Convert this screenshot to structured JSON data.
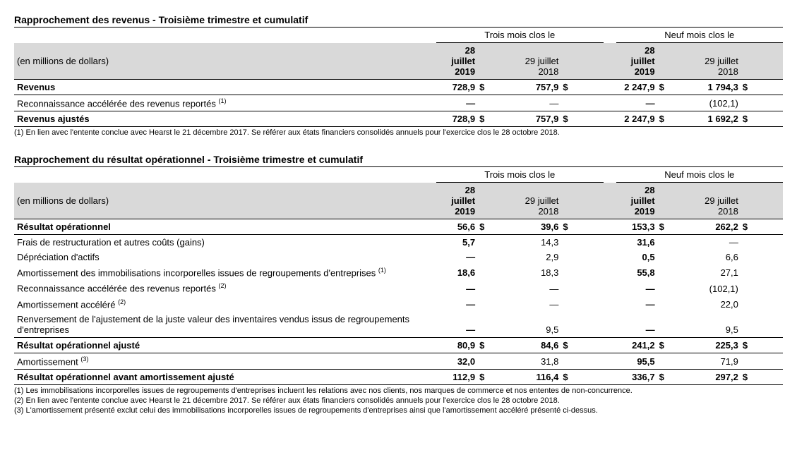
{
  "table1": {
    "title": "Rapprochement des revenus - Troisième trimestre et cumulatif",
    "units_label": "(en millions de dollars)",
    "period_headers": [
      "Trois mois clos le",
      "Neuf mois clos le"
    ],
    "col_headers": [
      "28 juillet 2019",
      "29 juillet 2018",
      "28 juillet 2019",
      "29 juillet 2018"
    ],
    "col_bold": [
      true,
      false,
      true,
      false
    ],
    "currency": "$",
    "rows": [
      {
        "label": "Revenus",
        "values": [
          "728,9",
          "757,9",
          "2 247,9",
          "1 794,3"
        ],
        "bold": true,
        "show_currency": true,
        "border_bottom": "thin"
      },
      {
        "label": "Reconnaissance accélérée des revenus reportés",
        "footnote_ref": "(1)",
        "values": [
          "—",
          "—",
          "—",
          "(102,1)"
        ],
        "bold": false,
        "show_currency": false
      },
      {
        "label": "Revenus ajustés",
        "values": [
          "728,9",
          "757,9",
          "2 247,9",
          "1 692,2"
        ],
        "bold": true,
        "show_currency": true,
        "border_top": "thin",
        "border_bottom": "thick"
      }
    ],
    "footnotes": [
      "(1) En lien avec l'entente conclue avec Hearst le 21 décembre 2017. Se référer aux états financiers consolidés annuels pour l'exercice clos le 28 octobre 2018."
    ]
  },
  "table2": {
    "title": "Rapprochement du résultat opérationnel - Troisième trimestre et cumulatif",
    "units_label": "(en millions de dollars)",
    "period_headers": [
      "Trois mois clos le",
      "Neuf mois clos le"
    ],
    "col_headers": [
      "28 juillet 2019",
      "29 juillet 2018",
      "28 juillet 2019",
      "29 juillet 2018"
    ],
    "col_bold": [
      true,
      false,
      true,
      false
    ],
    "currency": "$",
    "rows": [
      {
        "label": "Résultat opérationnel",
        "values": [
          "56,6",
          "39,6",
          "153,3",
          "262,2"
        ],
        "bold": true,
        "show_currency": true,
        "border_bottom": "thin"
      },
      {
        "label": "Frais de restructuration et autres coûts (gains)",
        "values": [
          "5,7",
          "14,3",
          "31,6",
          "—"
        ],
        "bold": false,
        "show_currency": false
      },
      {
        "label": "Dépréciation d'actifs",
        "values": [
          "—",
          "2,9",
          "0,5",
          "6,6"
        ],
        "bold": false,
        "show_currency": false
      },
      {
        "label": "Amortissement des immobilisations incorporelles issues de regroupements d'entreprises",
        "footnote_ref": "(1)",
        "values": [
          "18,6",
          "18,3",
          "55,8",
          "27,1"
        ],
        "bold": false,
        "show_currency": false
      },
      {
        "label": "Reconnaissance accélérée des revenus reportés",
        "footnote_ref": "(2)",
        "values": [
          "—",
          "—",
          "—",
          "(102,1)"
        ],
        "bold": false,
        "show_currency": false
      },
      {
        "label": "Amortissement accéléré",
        "footnote_ref": "(2)",
        "values": [
          "—",
          "—",
          "—",
          "22,0"
        ],
        "bold": false,
        "show_currency": false
      },
      {
        "label": "Renversement de l'ajustement de la juste valeur des inventaires vendus issus de regroupements d'entreprises",
        "values": [
          "—",
          "9,5",
          "—",
          "9,5"
        ],
        "bold": false,
        "show_currency": false
      },
      {
        "label": "Résultat opérationnel ajusté",
        "values": [
          "80,9",
          "84,6",
          "241,2",
          "225,3"
        ],
        "bold": true,
        "show_currency": true,
        "border_top": "thin",
        "border_bottom": "thin"
      },
      {
        "label": "Amortissement",
        "footnote_ref": "(3)",
        "values": [
          "32,0",
          "31,8",
          "95,5",
          "71,9"
        ],
        "bold": false,
        "show_currency": false
      },
      {
        "label": "Résultat opérationnel avant amortissement ajusté",
        "values": [
          "112,9",
          "116,4",
          "336,7",
          "297,2"
        ],
        "bold": true,
        "show_currency": true,
        "border_top": "thin",
        "border_bottom": "thick"
      }
    ],
    "footnotes": [
      "(1) Les immobilisations incorporelles issues de regroupements d'entreprises incluent les relations avec nos clients, nos marques de commerce et nos ententes de non-concurrence.",
      "(2) En lien avec l'entente conclue avec Hearst le 21 décembre 2017. Se référer aux états financiers consolidés annuels pour l'exercice clos le 28 octobre 2018.",
      "(3) L'amortissement présenté exclut celui des immobilisations incorporelles issues de regroupements d'entreprises ainsi que l'amortissement accéléré présenté ci-dessus."
    ]
  }
}
